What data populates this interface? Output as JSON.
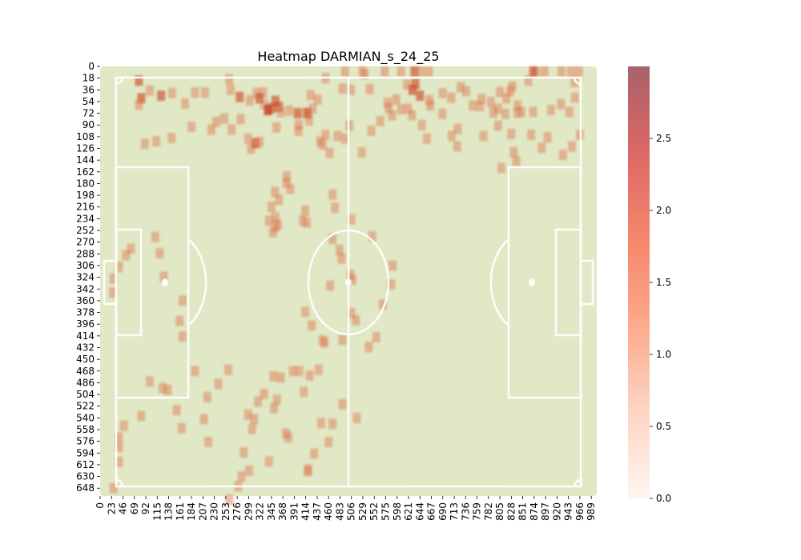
{
  "chart_data": {
    "type": "heatmap",
    "title": "Heatmap DARMIAN_s_24_25",
    "xlabel": "",
    "ylabel": "",
    "xlim": [
      0,
      1000
    ],
    "ylim": [
      0,
      660
    ],
    "x_ticks": [
      "0",
      "23",
      "46",
      "69",
      "92",
      "115",
      "138",
      "161",
      "184",
      "207",
      "230",
      "253",
      "276",
      "299",
      "322",
      "345",
      "368",
      "391",
      "414",
      "437",
      "460",
      "483",
      "506",
      "529",
      "552",
      "575",
      "598",
      "621",
      "644",
      "667",
      "690",
      "713",
      "736",
      "759",
      "782",
      "805",
      "828",
      "851",
      "874",
      "897",
      "920",
      "943",
      "966",
      "989"
    ],
    "y_ticks": [
      "0",
      "18",
      "36",
      "54",
      "72",
      "90",
      "108",
      "126",
      "144",
      "162",
      "180",
      "198",
      "216",
      "234",
      "252",
      "270",
      "288",
      "306",
      "324",
      "342",
      "360",
      "378",
      "396",
      "414",
      "432",
      "450",
      "468",
      "486",
      "504",
      "522",
      "540",
      "558",
      "576",
      "594",
      "612",
      "630",
      "648"
    ],
    "colorbar": {
      "min": 0.0,
      "max": 3.0,
      "ticks": [
        "0.0",
        "0.5",
        "1.0",
        "1.5",
        "2.0",
        "2.5"
      ]
    },
    "background_color": "#e1e8c6",
    "line_color": "#ffffff",
    "cell_size": 16,
    "cells": [
      [
        70,
        14,
        2
      ],
      [
        75,
        41,
        2
      ],
      [
        70,
        51,
        1
      ],
      [
        115,
        37,
        2
      ],
      [
        137,
        33,
        1
      ],
      [
        92,
        29,
        1
      ],
      [
        163,
        49,
        1
      ],
      [
        183,
        32,
        1
      ],
      [
        203,
        32,
        1
      ],
      [
        252,
        12,
        1
      ],
      [
        255,
        28,
        1
      ],
      [
        273,
        39,
        2
      ],
      [
        293,
        44,
        1
      ],
      [
        307,
        33,
        1
      ],
      [
        320,
        32,
        1
      ],
      [
        313,
        41,
        2
      ],
      [
        322,
        50,
        1
      ],
      [
        330,
        59,
        3
      ],
      [
        345,
        45,
        2
      ],
      [
        352,
        54,
        2
      ],
      [
        337,
        56,
        2
      ],
      [
        356,
        62,
        1
      ],
      [
        373,
        60,
        1
      ],
      [
        390,
        64,
        2
      ],
      [
        407,
        63,
        1
      ],
      [
        410,
        64,
        2
      ],
      [
        420,
        57,
        1
      ],
      [
        413,
        75,
        1
      ],
      [
        392,
        82,
        1
      ],
      [
        275,
        73,
        1
      ],
      [
        257,
        89,
        1
      ],
      [
        226,
        77,
        1
      ],
      [
        242,
        72,
        1
      ],
      [
        216,
        89,
        1
      ],
      [
        176,
        85,
        1
      ],
      [
        136,
        102,
        1
      ],
      [
        105,
        107,
        1
      ],
      [
        82,
        111,
        1
      ],
      [
        290,
        103,
        1
      ],
      [
        296,
        118,
        1
      ],
      [
        305,
        110,
        2
      ],
      [
        313,
        108,
        1
      ],
      [
        347,
        86,
        1
      ],
      [
        391,
        91,
        1
      ],
      [
        435,
        107,
        1
      ],
      [
        480,
        26,
        1
      ],
      [
        416,
        36,
        1
      ],
      [
        430,
        43,
        1
      ],
      [
        446,
        10,
        1
      ],
      [
        485,
        0,
        1
      ],
      [
        520,
        0,
        1
      ],
      [
        565,
        0,
        1
      ],
      [
        598,
        0,
        1
      ],
      [
        625,
        0,
        2
      ],
      [
        638,
        0,
        1
      ],
      [
        654,
        0,
        1
      ],
      [
        610,
        20,
        1
      ],
      [
        627,
        19,
        2
      ],
      [
        621,
        28,
        2
      ],
      [
        636,
        37,
        2
      ],
      [
        655,
        44,
        1
      ],
      [
        699,
        40,
        1
      ],
      [
        718,
        24,
        1
      ],
      [
        729,
        30,
        1
      ],
      [
        742,
        52,
        1
      ],
      [
        757,
        53,
        1
      ],
      [
        784,
        63,
        1
      ],
      [
        793,
        57,
        1
      ],
      [
        833,
        52,
        1
      ],
      [
        840,
        62,
        1
      ],
      [
        864,
        62,
        1
      ],
      [
        900,
        59,
        1
      ],
      [
        920,
        50,
        1
      ],
      [
        937,
        62,
        1
      ],
      [
        948,
        40,
        1
      ],
      [
        947,
        16,
        1
      ],
      [
        956,
        0,
        1
      ],
      [
        940,
        0,
        1
      ],
      [
        921,
        0,
        1
      ],
      [
        887,
        0,
        1
      ],
      [
        870,
        0,
        1
      ],
      [
        864,
        0,
        2
      ],
      [
        854,
        14,
        1
      ],
      [
        822,
        23,
        1
      ],
      [
        818,
        30,
        1
      ],
      [
        810,
        41,
        1
      ],
      [
        808,
        65,
        1
      ],
      [
        681,
        65,
        1
      ],
      [
        620,
        67,
        1
      ],
      [
        598,
        58,
        1
      ],
      [
        573,
        56,
        1
      ],
      [
        556,
        76,
        1
      ],
      [
        535,
        27,
        1
      ],
      [
        525,
        4,
        1
      ],
      [
        497,
        28,
        1
      ],
      [
        494,
        83,
        1
      ],
      [
        612,
        57,
        1
      ],
      [
        580,
        67,
        1
      ],
      [
        640,
        82,
        1
      ],
      [
        700,
        99,
        1
      ],
      [
        712,
        88,
        1
      ],
      [
        650,
        103,
        1
      ],
      [
        711,
        115,
        1
      ],
      [
        764,
        99,
        1
      ],
      [
        793,
        83,
        1
      ],
      [
        860,
        97,
        1
      ],
      [
        893,
        101,
        1
      ],
      [
        958,
        97,
        1
      ],
      [
        942,
        115,
        1
      ],
      [
        924,
        128,
        1
      ],
      [
        881,
        117,
        1
      ],
      [
        800,
        148,
        1
      ],
      [
        830,
        138,
        1
      ],
      [
        825,
        124,
        1
      ],
      [
        832,
        63,
        1
      ],
      [
        820,
        96,
        1
      ],
      [
        797,
        31,
        1
      ],
      [
        779,
        47,
        1
      ],
      [
        760,
        42,
        1
      ],
      [
        682,
        33,
        1
      ],
      [
        657,
        52,
        1
      ],
      [
        588,
        43,
        1
      ],
      [
        571,
        48,
        1
      ],
      [
        538,
        91,
        1
      ],
      [
        519,
        124,
        1
      ],
      [
        485,
        103,
        1
      ],
      [
        470,
        99,
        1
      ],
      [
        446,
        97,
        1
      ],
      [
        454,
        125,
        1
      ],
      [
        440,
        112,
        1
      ],
      [
        460,
        189,
        1
      ],
      [
        465,
        209,
        1
      ],
      [
        498,
        227,
        1
      ],
      [
        540,
        253,
        1
      ],
      [
        581,
        298,
        1
      ],
      [
        578,
        327,
        1
      ],
      [
        561,
        358,
        1
      ],
      [
        507,
        382,
        1
      ],
      [
        498,
        371,
        1
      ],
      [
        548,
        408,
        1
      ],
      [
        533,
        423,
        1
      ],
      [
        480,
        412,
        1
      ],
      [
        432,
        458,
        1
      ],
      [
        402,
        492,
        1
      ],
      [
        393,
        460,
        1
      ],
      [
        380,
        460,
        1
      ],
      [
        356,
        470,
        1
      ],
      [
        341,
        468,
        1
      ],
      [
        322,
        495,
        1
      ],
      [
        310,
        507,
        1
      ],
      [
        302,
        534,
        1
      ],
      [
        298,
        549,
        1
      ],
      [
        290,
        527,
        1
      ],
      [
        281,
        585,
        1
      ],
      [
        277,
        622,
        1
      ],
      [
        270,
        637,
        1
      ],
      [
        252,
        658,
        1
      ],
      [
        210,
        569,
        1
      ],
      [
        201,
        534,
        1
      ],
      [
        156,
        548,
        1
      ],
      [
        146,
        520,
        1
      ],
      [
        128,
        489,
        1
      ],
      [
        118,
        486,
        1
      ],
      [
        92,
        476,
        1
      ],
      [
        75,
        529,
        1
      ],
      [
        40,
        544,
        1
      ],
      [
        30,
        562,
        1
      ],
      [
        30,
        577,
        1
      ],
      [
        30,
        600,
        1
      ],
      [
        19,
        640,
        1
      ],
      [
        250,
        458,
        1
      ],
      [
        230,
        480,
        1
      ],
      [
        208,
        500,
        1
      ],
      [
        183,
        460,
        1
      ],
      [
        158,
        407,
        1
      ],
      [
        152,
        383,
        1
      ],
      [
        158,
        352,
        1
      ],
      [
        120,
        315,
        1
      ],
      [
        112,
        279,
        1
      ],
      [
        103,
        254,
        1
      ],
      [
        54,
        272,
        1
      ],
      [
        44,
        282,
        1
      ],
      [
        30,
        300,
        1
      ],
      [
        19,
        318,
        1
      ],
      [
        18,
        340,
        1
      ],
      [
        345,
        239,
        1
      ],
      [
        350,
        235,
        1
      ],
      [
        340,
        247,
        1
      ],
      [
        345,
        224,
        1
      ],
      [
        332,
        229,
        1
      ],
      [
        337,
        208,
        1
      ],
      [
        405,
        214,
        1
      ],
      [
        400,
        229,
        1
      ],
      [
        408,
        232,
        1
      ],
      [
        352,
        197,
        1
      ],
      [
        344,
        185,
        1
      ],
      [
        375,
        180,
        1
      ],
      [
        367,
        171,
        1
      ],
      [
        368,
        161,
        1
      ],
      [
        460,
        257,
        1
      ],
      [
        474,
        274,
        1
      ],
      [
        478,
        287,
        1
      ],
      [
        496,
        312,
        1
      ],
      [
        500,
        320,
        1
      ],
      [
        455,
        329,
        1
      ],
      [
        405,
        369,
        1
      ],
      [
        418,
        390,
        1
      ],
      [
        440,
        413,
        1
      ],
      [
        444,
        416,
        1
      ],
      [
        414,
        467,
        1
      ],
      [
        366,
        556,
        1
      ],
      [
        371,
        562,
        1
      ],
      [
        332,
        599,
        1
      ],
      [
        292,
        613,
        1
      ],
      [
        348,
        504,
        1
      ],
      [
        342,
        517,
        1
      ],
      [
        437,
        540,
        1
      ],
      [
        460,
        541,
        1
      ],
      [
        480,
        511,
        1
      ],
      [
        509,
        532,
        1
      ],
      [
        452,
        569,
        1
      ],
      [
        423,
        587,
        1
      ],
      [
        411,
        611,
        1
      ],
      [
        410,
        614,
        1
      ]
    ]
  }
}
